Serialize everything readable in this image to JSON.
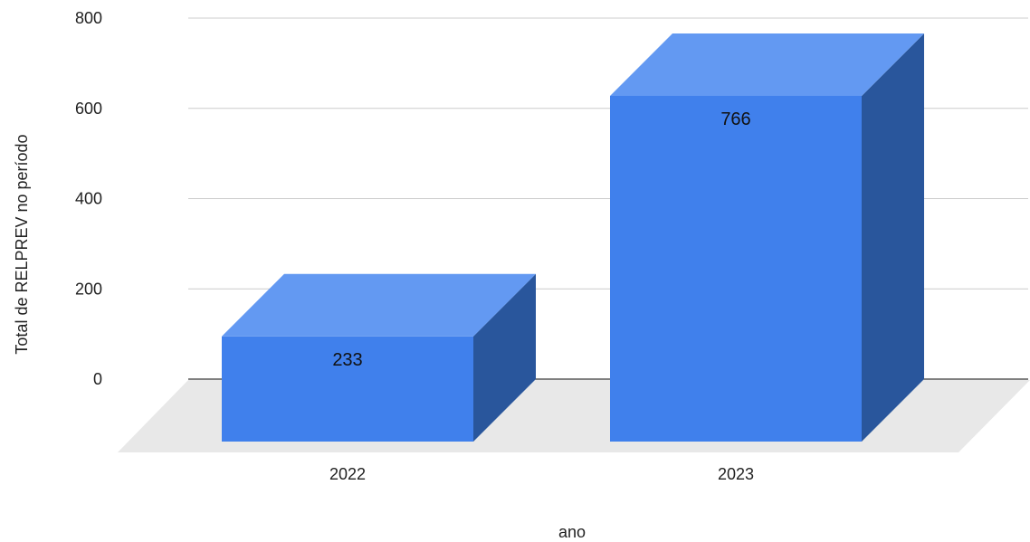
{
  "chart_data": {
    "type": "bar",
    "style": "3d",
    "categories": [
      "2022",
      "2023"
    ],
    "series": [
      {
        "values": [
          233,
          766
        ]
      }
    ],
    "data_labels": [
      "233",
      "766"
    ],
    "title": "",
    "xlabel": "ano",
    "ylabel": "Total de RELPREV no período",
    "ylim": [
      0,
      800
    ],
    "yticks": [
      "0",
      "200",
      "400",
      "600",
      "800"
    ],
    "grid": true,
    "legend": "none",
    "colors": {
      "bar_front": "#4080ec",
      "bar_top": "#6399f2",
      "bar_side": "#29569c",
      "floor": "#e8e8e8",
      "grid": "#cccccc",
      "baseline": "#333333"
    }
  }
}
